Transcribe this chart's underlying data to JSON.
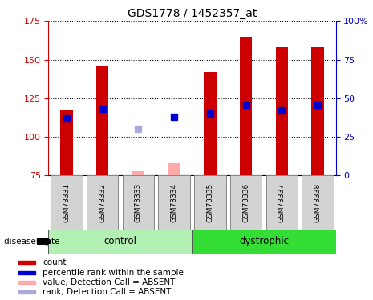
{
  "title": "GDS1778 / 1452357_at",
  "samples": [
    "GSM73331",
    "GSM73332",
    "GSM73333",
    "GSM73334",
    "GSM73335",
    "GSM73336",
    "GSM73337",
    "GSM73338"
  ],
  "count_values": [
    117,
    146,
    78,
    83,
    142,
    165,
    158,
    158
  ],
  "count_absent": [
    false,
    false,
    true,
    true,
    false,
    false,
    false,
    false
  ],
  "rank_values": [
    112,
    118,
    105,
    113,
    115,
    121,
    117,
    121
  ],
  "rank_absent": [
    false,
    false,
    true,
    false,
    false,
    false,
    false,
    false
  ],
  "ylim_left": [
    75,
    175
  ],
  "ylim_right": [
    0,
    100
  ],
  "yticks_left": [
    75,
    100,
    125,
    150,
    175
  ],
  "yticks_right": [
    0,
    25,
    50,
    75,
    100
  ],
  "ytick_right_labels": [
    "0",
    "25",
    "50",
    "75",
    "100%"
  ],
  "groups": [
    {
      "label": "control",
      "indices": [
        0,
        1,
        2,
        3
      ],
      "color": "#b3f0b3"
    },
    {
      "label": "dystrophic",
      "indices": [
        4,
        5,
        6,
        7
      ],
      "color": "#33dd33"
    }
  ],
  "bar_color_present": "#cc0000",
  "bar_color_absent": "#ffaaaa",
  "rank_color_present": "#0000cc",
  "rank_color_absent": "#aaaadd",
  "bar_width": 0.35,
  "rank_marker_size": 6,
  "axis_color_left": "#cc0000",
  "axis_color_right": "#0000cc",
  "sample_box_color": "#d3d3d3",
  "disease_state_label": "disease state",
  "legend_items": [
    {
      "label": "count",
      "color": "#cc0000"
    },
    {
      "label": "percentile rank within the sample",
      "color": "#0000cc"
    },
    {
      "label": "value, Detection Call = ABSENT",
      "color": "#ffaaaa"
    },
    {
      "label": "rank, Detection Call = ABSENT",
      "color": "#aaaadd"
    }
  ]
}
